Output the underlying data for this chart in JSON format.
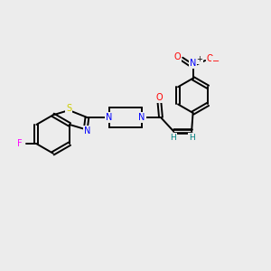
{
  "background_color": "#ececec",
  "atom_colors": {
    "N": "#0000ff",
    "O": "#ff0000",
    "S": "#cccc00",
    "F": "#ff00ff",
    "C": "#000000",
    "H": "#008080"
  },
  "bond_color": "#000000",
  "figsize": [
    3.0,
    3.0
  ],
  "dpi": 100
}
